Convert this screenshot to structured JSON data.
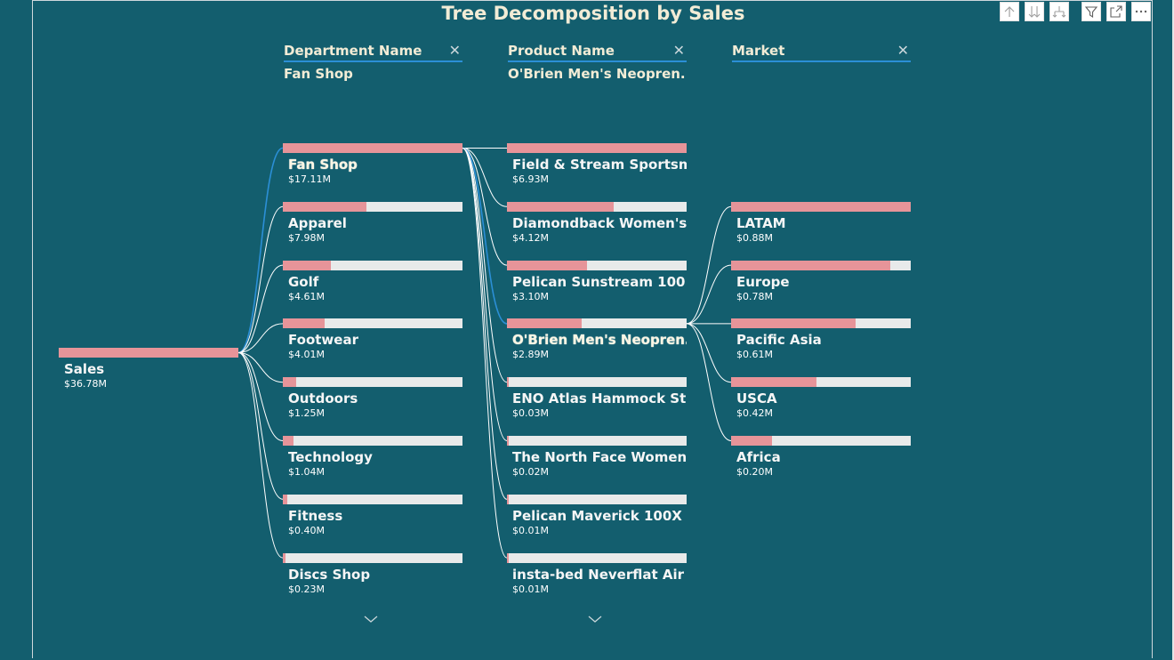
{
  "title": "Tree Decomposition by Sales",
  "toolbar": [
    {
      "name": "drill-up-icon"
    },
    {
      "name": "drill-down-all-icon"
    },
    {
      "name": "expand-hierarchy-icon"
    },
    {
      "name": "filter-icon"
    },
    {
      "name": "focus-mode-icon"
    },
    {
      "name": "more-options-icon"
    }
  ],
  "columns": [
    {
      "header": "Department Name",
      "value": "Fan Shop"
    },
    {
      "header": "Product Name",
      "value": "O'Brien Men's Neopren..."
    },
    {
      "header": "Market",
      "value": ""
    }
  ],
  "colors": {
    "bar_fill": "#e69499",
    "bar_track": "#e8eaea",
    "background": "#135e6e",
    "highlight_link": "#2b8fd6"
  },
  "root": {
    "label": "Sales",
    "value_text": "$36.78M",
    "value": 36.78
  },
  "departments": [
    {
      "label": "Fan Shop",
      "value_text": "$17.11M",
      "value": 17.11,
      "selected": true
    },
    {
      "label": "Apparel",
      "value_text": "$7.98M",
      "value": 7.98
    },
    {
      "label": "Golf",
      "value_text": "$4.61M",
      "value": 4.61
    },
    {
      "label": "Footwear",
      "value_text": "$4.01M",
      "value": 4.01
    },
    {
      "label": "Outdoors",
      "value_text": "$1.25M",
      "value": 1.25
    },
    {
      "label": "Technology",
      "value_text": "$1.04M",
      "value": 1.04
    },
    {
      "label": "Fitness",
      "value_text": "$0.40M",
      "value": 0.4
    },
    {
      "label": "Discs Shop",
      "value_text": "$0.23M",
      "value": 0.23
    }
  ],
  "products": [
    {
      "label": "Field & Stream Sportsm...",
      "value_text": "$6.93M",
      "value": 6.93
    },
    {
      "label": "Diamondback Women's...",
      "value_text": "$4.12M",
      "value": 4.12
    },
    {
      "label": "Pelican Sunstream 100 ...",
      "value_text": "$3.10M",
      "value": 3.1
    },
    {
      "label": "O'Brien Men's Neopren...",
      "value_text": "$2.89M",
      "value": 2.89,
      "selected": true
    },
    {
      "label": "ENO Atlas Hammock St...",
      "value_text": "$0.03M",
      "value": 0.03
    },
    {
      "label": "The North Face Women...",
      "value_text": "$0.02M",
      "value": 0.02
    },
    {
      "label": "Pelican Maverick 100X ...",
      "value_text": "$0.01M",
      "value": 0.01
    },
    {
      "label": "insta-bed Neverflat Air ...",
      "value_text": "$0.01M",
      "value": 0.01
    }
  ],
  "markets": [
    {
      "label": "LATAM",
      "value_text": "$0.88M",
      "value": 0.88
    },
    {
      "label": "Europe",
      "value_text": "$0.78M",
      "value": 0.78
    },
    {
      "label": "Pacific Asia",
      "value_text": "$0.61M",
      "value": 0.61
    },
    {
      "label": "USCA",
      "value_text": "$0.42M",
      "value": 0.42
    },
    {
      "label": "Africa",
      "value_text": "$0.20M",
      "value": 0.2
    }
  ]
}
